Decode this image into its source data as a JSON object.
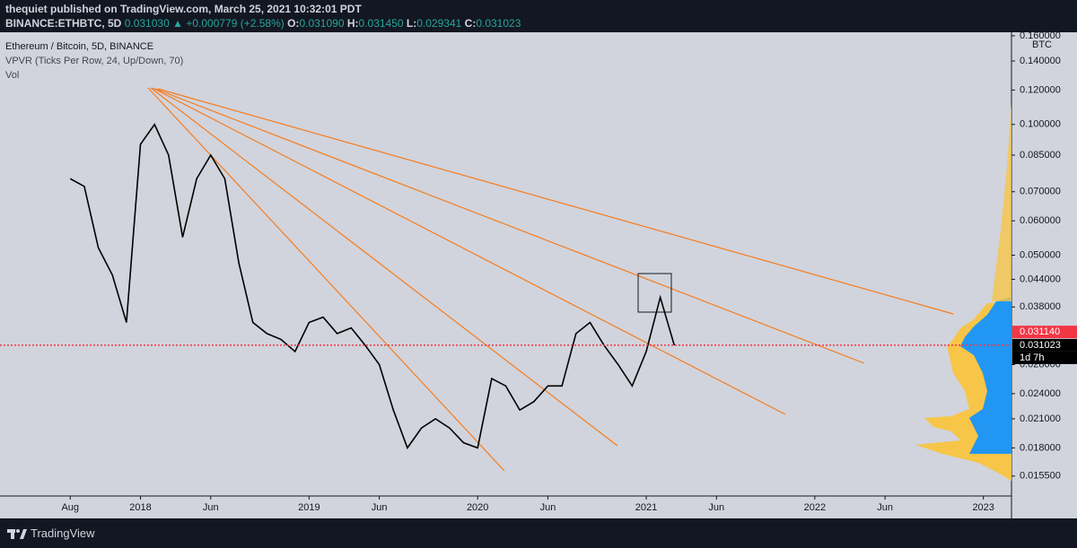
{
  "header": {
    "author_line": "thequiet published on TradingView.com, March 25, 2021 10:32:01 PDT",
    "symbol": "BINANCE:ETHBTC, 5D",
    "last": "0.031030",
    "arrow": "▲",
    "change": "+0.000779 (+2.58%)",
    "o_label": "O:",
    "o": "0.031090",
    "h_label": "H:",
    "h": "0.031450",
    "l_label": "L:",
    "l": "0.029341",
    "c_label": "C:",
    "c": "0.031023"
  },
  "footer": {
    "brand": "TradingView"
  },
  "chart_data": {
    "type": "line",
    "legend": [
      "Ethereum / Bitcoin, 5D, BINANCE",
      "VPVR (Ticks Per Row, 24, Up/Down, 70)",
      "Vol"
    ],
    "y_unit": "BTC",
    "log_y": true,
    "xlim": [
      "2017-03",
      "2023-03"
    ],
    "xticks": [
      {
        "value": "2017-08",
        "label": "Aug"
      },
      {
        "value": "2018-01",
        "label": "2018"
      },
      {
        "value": "2018-06",
        "label": "Jun"
      },
      {
        "value": "2019-01",
        "label": "2019"
      },
      {
        "value": "2019-06",
        "label": "Jun"
      },
      {
        "value": "2020-01",
        "label": "2020"
      },
      {
        "value": "2020-06",
        "label": "Jun"
      },
      {
        "value": "2021-01",
        "label": "2021"
      },
      {
        "value": "2021-06",
        "label": "Jun"
      },
      {
        "value": "2022-01",
        "label": "2022"
      },
      {
        "value": "2022-06",
        "label": "Jun"
      },
      {
        "value": "2023-01",
        "label": "2023"
      }
    ],
    "ylim": [
      0.01395,
      0.163
    ],
    "yticks": [
      {
        "value": 0.0155,
        "label": "0.015500"
      },
      {
        "value": 0.018,
        "label": "0.018000"
      },
      {
        "value": 0.021,
        "label": "0.021000"
      },
      {
        "value": 0.024,
        "label": "0.024000"
      },
      {
        "value": 0.028,
        "label": "0.028000"
      },
      {
        "value": 0.038,
        "label": "0.038000"
      },
      {
        "value": 0.044,
        "label": "0.044000"
      },
      {
        "value": 0.05,
        "label": "0.050000"
      },
      {
        "value": 0.06,
        "label": "0.060000"
      },
      {
        "value": 0.07,
        "label": "0.070000"
      },
      {
        "value": 0.085,
        "label": "0.085000"
      },
      {
        "value": 0.1,
        "label": "0.100000"
      },
      {
        "value": 0.12,
        "label": "0.120000"
      },
      {
        "value": 0.14,
        "label": "0.140000"
      },
      {
        "value": 0.16,
        "label": "0.160000"
      }
    ],
    "x": [
      "2017-08",
      "2017-09",
      "2017-10",
      "2017-11",
      "2017-12",
      "2018-01",
      "2018-02",
      "2018-03",
      "2018-04",
      "2018-05",
      "2018-06",
      "2018-07",
      "2018-08",
      "2018-09",
      "2018-10",
      "2018-11",
      "2018-12",
      "2019-01",
      "2019-02",
      "2019-03",
      "2019-04",
      "2019-05",
      "2019-06",
      "2019-07",
      "2019-08",
      "2019-09",
      "2019-10",
      "2019-11",
      "2019-12",
      "2020-01",
      "2020-02",
      "2020-03",
      "2020-04",
      "2020-05",
      "2020-06",
      "2020-07",
      "2020-08",
      "2020-09",
      "2020-10",
      "2020-11",
      "2020-12",
      "2021-01",
      "2021-02",
      "2021-03"
    ],
    "series": [
      {
        "name": "ETHBTC",
        "color": "#000000",
        "values": [
          0.075,
          0.072,
          0.052,
          0.045,
          0.035,
          0.09,
          0.1,
          0.085,
          0.055,
          0.075,
          0.085,
          0.075,
          0.048,
          0.035,
          0.033,
          0.032,
          0.03,
          0.035,
          0.036,
          0.033,
          0.034,
          0.031,
          0.028,
          0.022,
          0.018,
          0.02,
          0.021,
          0.02,
          0.0185,
          0.018,
          0.026,
          0.025,
          0.022,
          0.023,
          0.025,
          0.025,
          0.033,
          0.035,
          0.031,
          0.028,
          0.025,
          0.03,
          0.04,
          0.031
        ]
      }
    ],
    "price_tags": [
      {
        "value": 0.03114,
        "label": "0.031140",
        "color": "#f23645"
      },
      {
        "value": 0.031023,
        "label": "0.031023",
        "color": "#000000"
      }
    ],
    "countdown": "1d 7h"
  }
}
